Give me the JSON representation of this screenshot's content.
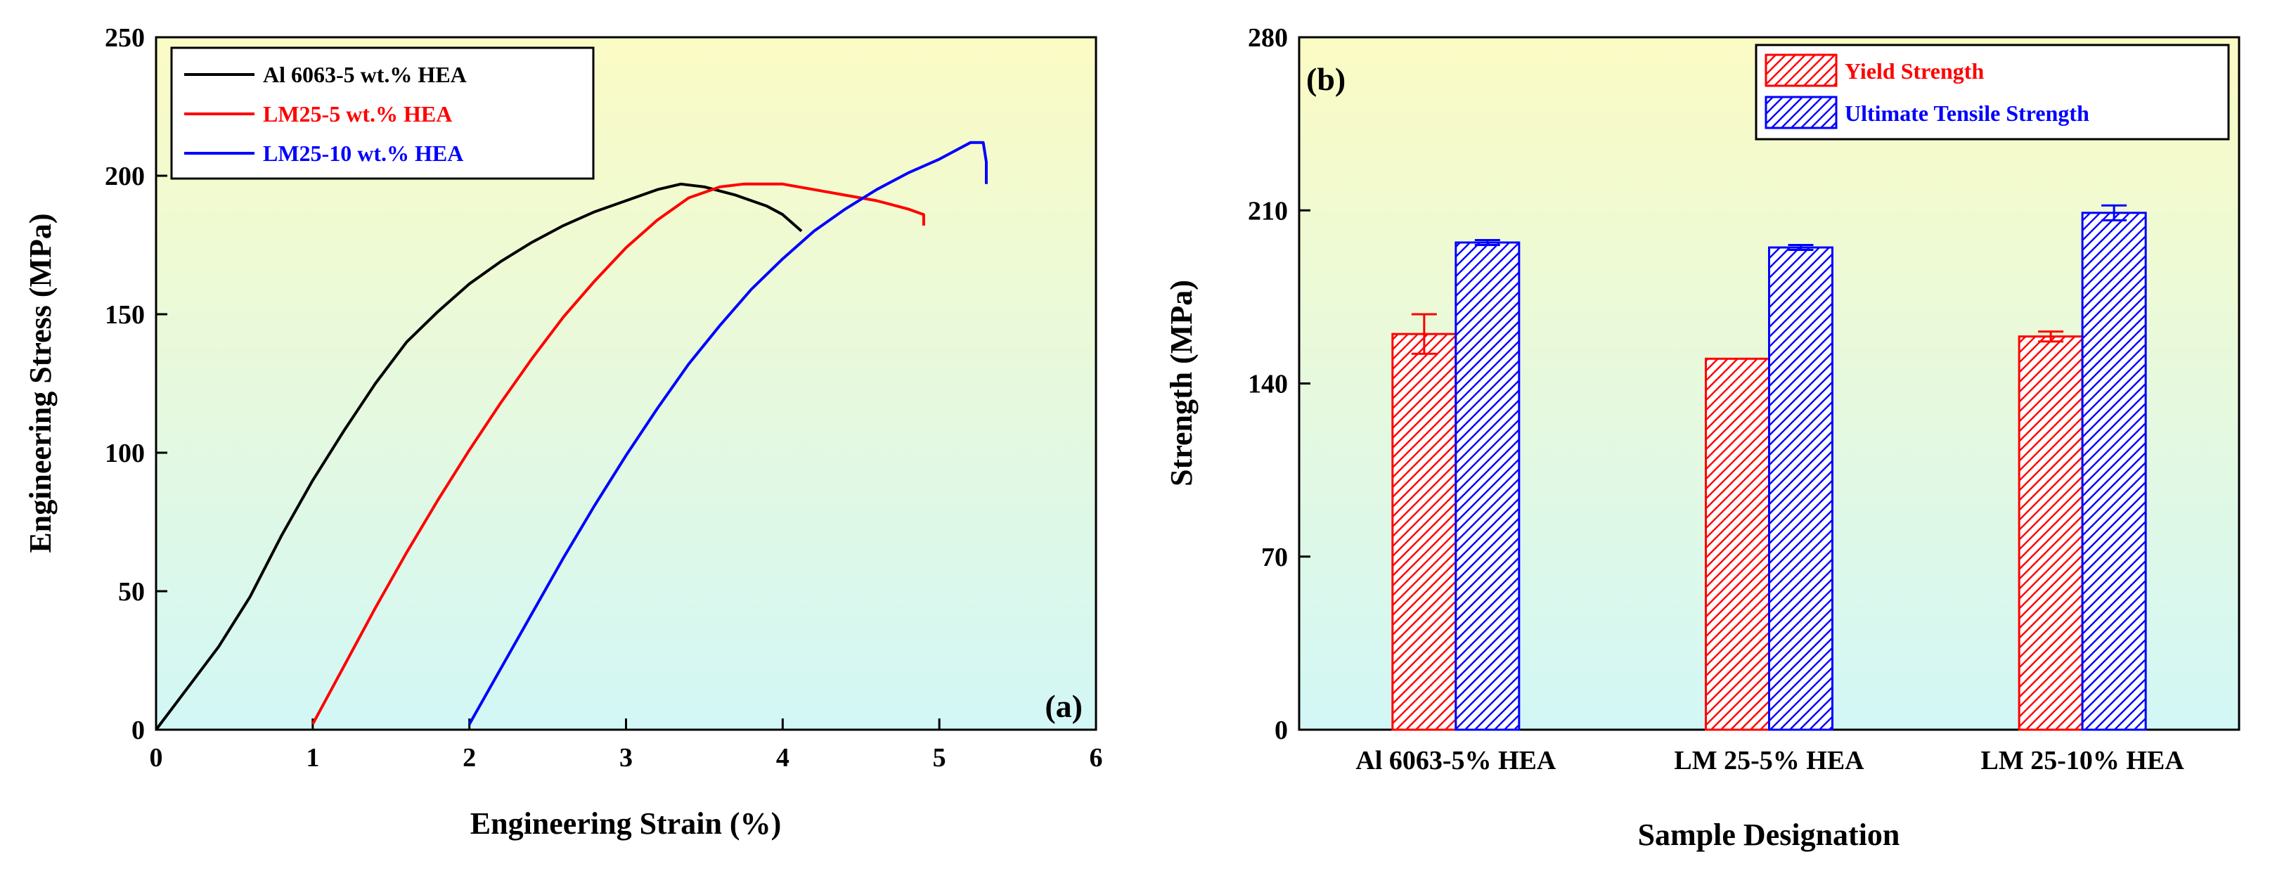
{
  "chart_data": [
    {
      "panel": "(a)",
      "type": "line",
      "xlabel": "Engineering Strain (%)",
      "ylabel": "Engineering Stress (MPa)",
      "xlim": [
        0,
        6
      ],
      "ylim": [
        0,
        250
      ],
      "xticks": [
        0,
        1,
        2,
        3,
        4,
        5,
        6
      ],
      "yticks": [
        0,
        50,
        100,
        150,
        200,
        250
      ],
      "legend_position": "top-left",
      "series": [
        {
          "name": "Al 6063-5 wt.% HEA",
          "color": "#000000",
          "x": [
            0,
            0.2,
            0.4,
            0.6,
            0.8,
            1.0,
            1.2,
            1.4,
            1.6,
            1.8,
            2.0,
            2.2,
            2.4,
            2.6,
            2.8,
            3.0,
            3.2,
            3.35,
            3.5,
            3.7,
            3.9,
            4.0,
            4.12
          ],
          "y": [
            0,
            15,
            30,
            48,
            70,
            90,
            108,
            125,
            140,
            151,
            161,
            169,
            176,
            182,
            187,
            191,
            195,
            197,
            196,
            193,
            189,
            186,
            180
          ]
        },
        {
          "name": "LM25-5 wt.% HEA",
          "color": "#ff0000",
          "x": [
            1.0,
            1.2,
            1.4,
            1.6,
            1.8,
            2.0,
            2.2,
            2.4,
            2.6,
            2.8,
            3.0,
            3.2,
            3.4,
            3.6,
            3.75,
            4.0,
            4.2,
            4.4,
            4.6,
            4.8,
            4.9,
            4.9
          ],
          "y": [
            2,
            23,
            44,
            64,
            83,
            101,
            118,
            134,
            149,
            162,
            174,
            184,
            192,
            196,
            197,
            197,
            195,
            193,
            191,
            188,
            186,
            182
          ]
        },
        {
          "name": "LM25-10 wt.% HEA",
          "color": "#0000ff",
          "x": [
            2.0,
            2.2,
            2.4,
            2.6,
            2.8,
            3.0,
            3.2,
            3.4,
            3.6,
            3.8,
            4.0,
            4.2,
            4.4,
            4.6,
            4.8,
            5.0,
            5.1,
            5.2,
            5.28,
            5.3,
            5.3
          ],
          "y": [
            2,
            22,
            42,
            62,
            81,
            99,
            116,
            132,
            146,
            159,
            170,
            180,
            188,
            195,
            201,
            206,
            209,
            212,
            212,
            205,
            197
          ]
        }
      ]
    },
    {
      "panel": "(b)",
      "type": "bar",
      "xlabel": "Sample Designation",
      "ylabel": "Strength (MPa)",
      "ylim": [
        0,
        280
      ],
      "yticks": [
        0,
        70,
        140,
        210,
        280
      ],
      "categories": [
        "Al 6063-5% HEA",
        "LM 25-5% HEA",
        "LM 25-10% HEA"
      ],
      "legend_position": "top-right",
      "series": [
        {
          "name": "Yield Strength",
          "color": "#ff0000",
          "values": [
            160,
            150,
            159
          ],
          "errors": [
            8,
            0,
            2
          ]
        },
        {
          "name": "Ultimate Tensile Strength",
          "color": "#0000ff",
          "values": [
            197,
            195,
            209
          ],
          "errors": [
            1,
            1,
            3
          ]
        }
      ]
    }
  ]
}
